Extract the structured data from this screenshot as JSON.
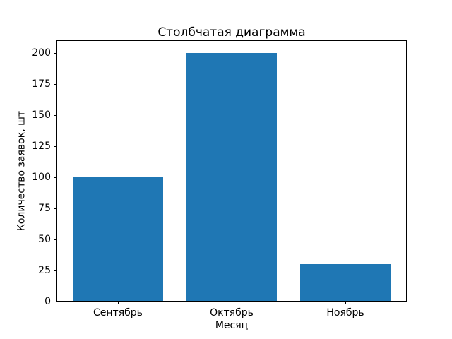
{
  "chart_data": {
    "type": "bar",
    "title": "Столбчатая диаграмма",
    "xlabel": "Месяц",
    "ylabel": "Количество заявок, шт",
    "categories": [
      "Сентябрь",
      "Октябрь",
      "Ноябрь"
    ],
    "values": [
      100,
      200,
      30
    ],
    "yticks": [
      0,
      25,
      50,
      75,
      100,
      125,
      150,
      175,
      200
    ],
    "ylim": [
      0,
      210
    ],
    "xlim": [
      -0.54,
      2.54
    ],
    "bar_width": 0.8,
    "bar_color": "#1f77b4",
    "background": "#ffffff",
    "text_color": "#000000",
    "grid": false,
    "legend_position": "none"
  }
}
